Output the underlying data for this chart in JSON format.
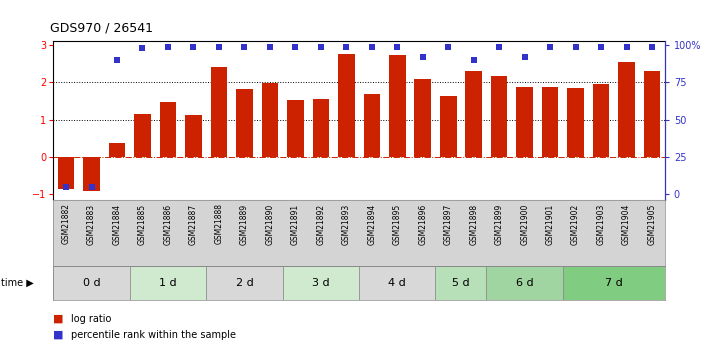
{
  "title": "GDS970 / 26541",
  "samples": [
    "GSM21882",
    "GSM21883",
    "GSM21884",
    "GSM21885",
    "GSM21886",
    "GSM21887",
    "GSM21888",
    "GSM21889",
    "GSM21890",
    "GSM21891",
    "GSM21892",
    "GSM21893",
    "GSM21894",
    "GSM21895",
    "GSM21896",
    "GSM21897",
    "GSM21898",
    "GSM21899",
    "GSM21900",
    "GSM21901",
    "GSM21902",
    "GSM21903",
    "GSM21904",
    "GSM21905"
  ],
  "log_ratio": [
    -0.85,
    -0.9,
    0.37,
    1.15,
    1.48,
    1.13,
    2.42,
    1.83,
    1.98,
    1.52,
    1.55,
    2.75,
    1.68,
    2.73,
    2.08,
    1.65,
    2.31,
    2.18,
    1.87,
    1.87,
    1.84,
    1.95,
    2.55,
    2.3
  ],
  "percentile": [
    5,
    5,
    90,
    98,
    99,
    99,
    99,
    99,
    99,
    99,
    99,
    99,
    99,
    99,
    92,
    99,
    90,
    99,
    92,
    99,
    99,
    99,
    99,
    99
  ],
  "bar_color": "#cc2200",
  "blue_color": "#3333cc",
  "time_groups": [
    {
      "label": "0 d",
      "start": 0,
      "end": 3,
      "color": "#d8d8d8"
    },
    {
      "label": "1 d",
      "start": 3,
      "end": 6,
      "color": "#d0ead0"
    },
    {
      "label": "2 d",
      "start": 6,
      "end": 9,
      "color": "#d8d8d8"
    },
    {
      "label": "3 d",
      "start": 9,
      "end": 12,
      "color": "#d0ead0"
    },
    {
      "label": "4 d",
      "start": 12,
      "end": 15,
      "color": "#d8d8d8"
    },
    {
      "label": "5 d",
      "start": 15,
      "end": 17,
      "color": "#b8e0b8"
    },
    {
      "label": "6 d",
      "start": 17,
      "end": 20,
      "color": "#a0d4a0"
    },
    {
      "label": "7 d",
      "start": 20,
      "end": 24,
      "color": "#80cc80"
    }
  ],
  "ylim": [
    -1.15,
    3.1
  ],
  "yticks_left": [
    -1,
    0,
    1,
    2,
    3
  ],
  "legend_red": "log ratio",
  "legend_blue": "percentile rank within the sample",
  "bg_label_color": "#cccccc",
  "label_fontsize": 5.5,
  "time_fontsize": 8.0
}
